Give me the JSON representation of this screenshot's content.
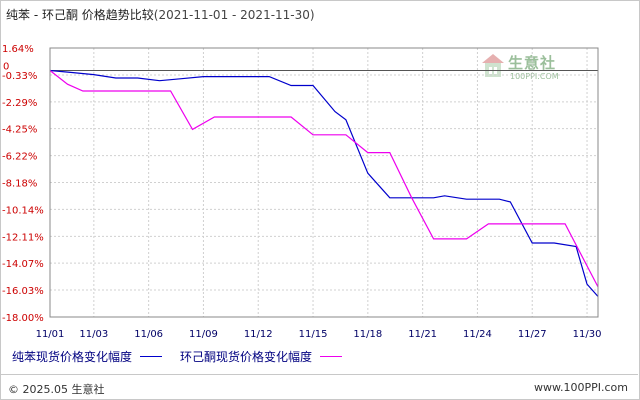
{
  "title": {
    "main": "纯苯 - 环己酮 价格趋势比较",
    "range": "(2021-11-01 - 2021-11-30)"
  },
  "logo": {
    "name": "生意社",
    "sub": "100PPI.COM"
  },
  "footer": {
    "copyright": "© 2025.05 生意社",
    "url": "www.100PPI.com"
  },
  "colors": {
    "series1": "#0000cc",
    "series2": "#ee00ee",
    "ytick": "#cc0000",
    "xtick": "#000066",
    "grid": "#d0d0d0"
  },
  "chart_data": {
    "type": "line",
    "xlabel": "",
    "ylabel": "",
    "ylim": [
      -18.0,
      1.64
    ],
    "y_ticks": [
      "1.64%",
      "-0.33%",
      "-2.29%",
      "-4.25%",
      "-6.22%",
      "-8.18%",
      "-10.14%",
      "-12.11%",
      "-14.07%",
      "-16.03%",
      "-18.00%"
    ],
    "y_tick_values": [
      1.64,
      -0.33,
      -2.29,
      -4.25,
      -6.22,
      -8.18,
      -10.14,
      -12.11,
      -14.07,
      -16.03,
      -18.0
    ],
    "zero_label": "0",
    "x_ticks": [
      "11/01",
      "11/03",
      "11/06",
      "11/09",
      "11/12",
      "11/15",
      "11/18",
      "11/21",
      "11/24",
      "11/27",
      "11/30"
    ],
    "x_tick_days": [
      1,
      3,
      5.5,
      8,
      10.5,
      13,
      15.5,
      18,
      20.5,
      23,
      25.5
    ],
    "x_range": [
      1,
      25.5
    ],
    "grid": true,
    "legend_position": "bottom",
    "series": [
      {
        "name": "纯苯现货价格变化幅度",
        "color": "#0000cc",
        "points": [
          [
            1,
            0
          ],
          [
            2,
            -0.15
          ],
          [
            3,
            -0.3
          ],
          [
            4,
            -0.55
          ],
          [
            5,
            -0.55
          ],
          [
            6,
            -0.75
          ],
          [
            7,
            -0.6
          ],
          [
            8,
            -0.45
          ],
          [
            9,
            -0.45
          ],
          [
            10,
            -0.45
          ],
          [
            11,
            -0.45
          ],
          [
            12,
            -1.1
          ],
          [
            13,
            -1.1
          ],
          [
            14,
            -3.0
          ],
          [
            14.5,
            -3.6
          ],
          [
            15.5,
            -7.5
          ],
          [
            16.5,
            -9.3
          ],
          [
            17.5,
            -9.3
          ],
          [
            18.5,
            -9.3
          ],
          [
            19,
            -9.15
          ],
          [
            20,
            -9.4
          ],
          [
            21.5,
            -9.4
          ],
          [
            22,
            -9.6
          ],
          [
            23,
            -12.6
          ],
          [
            24,
            -12.6
          ],
          [
            25,
            -12.85
          ],
          [
            25.5,
            -15.6
          ],
          [
            26,
            -16.5
          ]
        ]
      },
      {
        "name": "环己酮现货价格变化幅度",
        "color": "#ee00ee",
        "points": [
          [
            1,
            0
          ],
          [
            1.8,
            -1.0
          ],
          [
            2.5,
            -1.5
          ],
          [
            4,
            -1.5
          ],
          [
            6.5,
            -1.5
          ],
          [
            7.5,
            -4.3
          ],
          [
            8.5,
            -3.4
          ],
          [
            9.5,
            -3.4
          ],
          [
            12,
            -3.4
          ],
          [
            13,
            -4.7
          ],
          [
            14.5,
            -4.7
          ],
          [
            15.5,
            -6.0
          ],
          [
            16.5,
            -6.0
          ],
          [
            17.5,
            -9.3
          ],
          [
            18.5,
            -12.3
          ],
          [
            20,
            -12.3
          ],
          [
            21,
            -11.2
          ],
          [
            22,
            -11.2
          ],
          [
            24.5,
            -11.2
          ],
          [
            26,
            -15.8
          ]
        ]
      }
    ]
  }
}
